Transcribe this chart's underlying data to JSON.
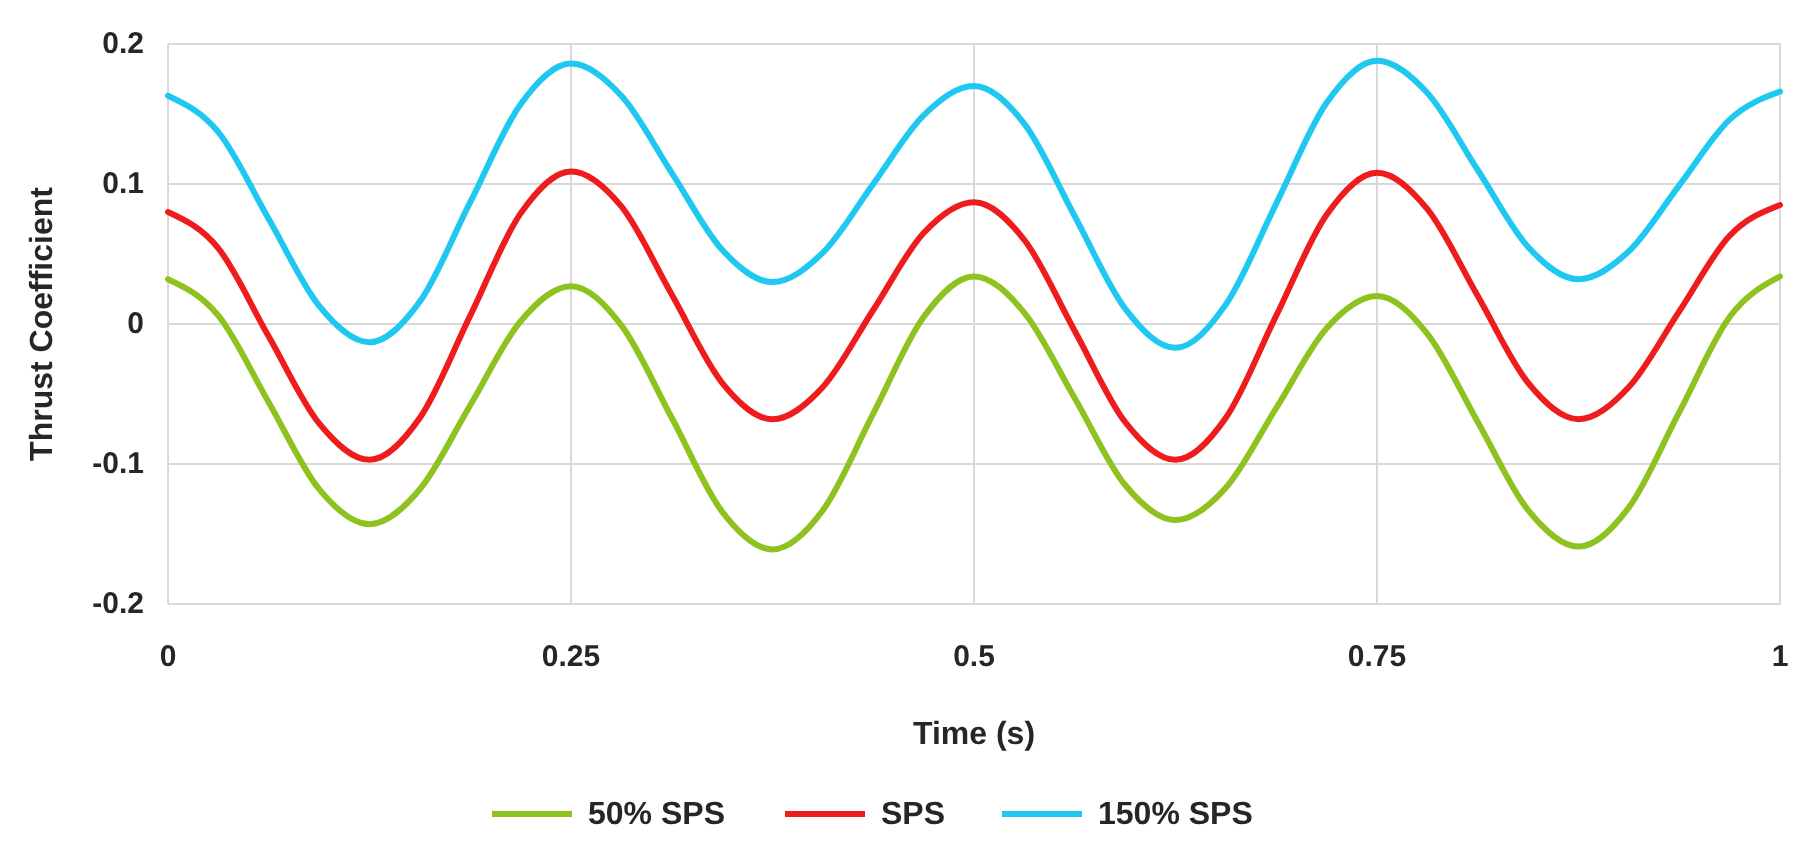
{
  "chart_data": {
    "type": "line",
    "xlabel": "Time (s)",
    "ylabel": "Thrust Coefficient",
    "x": [
      0,
      0.03125,
      0.0625,
      0.09375,
      0.125,
      0.15625,
      0.1875,
      0.21875,
      0.25,
      0.28125,
      0.3125,
      0.34375,
      0.375,
      0.40625,
      0.4375,
      0.46875,
      0.5,
      0.53125,
      0.5625,
      0.59375,
      0.625,
      0.65625,
      0.6875,
      0.71875,
      0.75,
      0.78125,
      0.8125,
      0.84375,
      0.875,
      0.90625,
      0.9375,
      0.96875,
      1
    ],
    "series": [
      {
        "name": "50% SPS",
        "color": "#8dc21f",
        "values": [
          0.032,
          0.006,
          -0.056,
          -0.118,
          -0.143,
          -0.118,
          -0.058,
          0.002,
          0.027,
          -0.001,
          -0.067,
          -0.134,
          -0.161,
          -0.133,
          -0.064,
          0.005,
          0.034,
          0.008,
          -0.053,
          -0.115,
          -0.14,
          -0.117,
          -0.06,
          -0.003,
          0.02,
          -0.007,
          -0.07,
          -0.133,
          -0.159,
          -0.131,
          -0.063,
          0.005,
          0.034
        ]
      },
      {
        "name": "SPS",
        "color": "#ee1c1c",
        "values": [
          0.08,
          0.054,
          -0.009,
          -0.071,
          -0.097,
          -0.067,
          0.006,
          0.079,
          0.109,
          0.084,
          0.021,
          -0.042,
          -0.068,
          -0.045,
          0.01,
          0.065,
          0.087,
          0.06,
          -0.005,
          -0.07,
          -0.097,
          -0.067,
          0.006,
          0.078,
          0.108,
          0.082,
          0.02,
          -0.042,
          -0.068,
          -0.045,
          0.009,
          0.063,
          0.085
        ]
      },
      {
        "name": "150% SPS",
        "color": "#1ec8f0",
        "values": [
          0.163,
          0.137,
          0.075,
          0.013,
          -0.013,
          0.016,
          0.087,
          0.157,
          0.186,
          0.163,
          0.108,
          0.053,
          0.03,
          0.051,
          0.1,
          0.149,
          0.17,
          0.143,
          0.077,
          0.011,
          -0.017,
          0.014,
          0.086,
          0.158,
          0.188,
          0.165,
          0.11,
          0.055,
          0.032,
          0.052,
          0.099,
          0.146,
          0.166
        ]
      }
    ],
    "xlim": [
      0,
      1
    ],
    "xticks": [
      0,
      0.25,
      0.5,
      0.75,
      1
    ],
    "ylim": [
      -0.2,
      0.2
    ],
    "yticks": [
      -0.2,
      -0.1,
      0,
      0.1,
      0.2
    ],
    "grid": true,
    "legend": "bottom"
  }
}
